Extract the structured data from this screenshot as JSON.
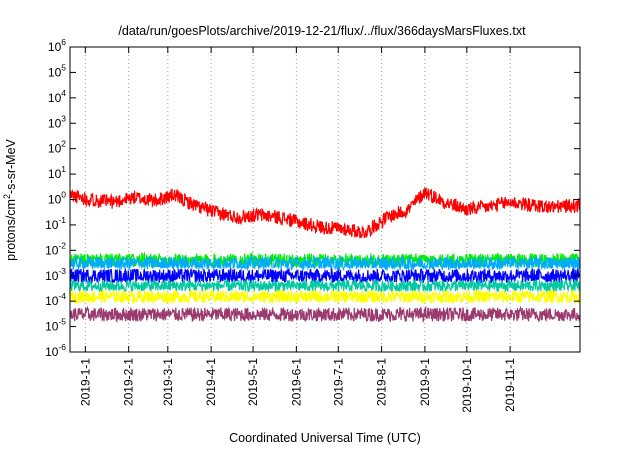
{
  "chart_data": {
    "type": "line",
    "title": "/data/run/goesPlots/archive/2019-12-21/flux/../flux/366daysMarsFluxes.txt",
    "xlabel": "Coordinated Universal Time (UTC)",
    "ylabel": "protons/cm²-s-sr-MeV",
    "ylabel_parts": {
      "prefix": "protons/cm",
      "sup": "2",
      "suffix": "-s-sr-MeV"
    },
    "y_scale": "log",
    "ylim_exp": [
      -6,
      6
    ],
    "y_ticks": [
      {
        "base": "10",
        "exp": "-6"
      },
      {
        "base": "10",
        "exp": "-5"
      },
      {
        "base": "10",
        "exp": "-4"
      },
      {
        "base": "10",
        "exp": "-3"
      },
      {
        "base": "10",
        "exp": "-2"
      },
      {
        "base": "10",
        "exp": "-1"
      },
      {
        "base": "10",
        "exp": "0"
      },
      {
        "base": "10",
        "exp": "1"
      },
      {
        "base": "10",
        "exp": "2"
      },
      {
        "base": "10",
        "exp": "3"
      },
      {
        "base": "10",
        "exp": "4"
      },
      {
        "base": "10",
        "exp": "5"
      },
      {
        "base": "10",
        "exp": "6"
      }
    ],
    "xlim": [
      "2018-12-21",
      "2019-12-21"
    ],
    "x_ticks": [
      "2019-1-1",
      "2019-2-1",
      "2019-3-1",
      "2019-4-1",
      "2019-5-1",
      "2019-6-1",
      "2019-7-1",
      "2019-8-1",
      "2019-9-1",
      "2019-10-1",
      "2019-11-1"
    ],
    "grid": true,
    "legend": "none",
    "series": [
      {
        "color": "#ff0000",
        "x": [
          "2018-12-21",
          "2019-01-05",
          "2019-01-20",
          "2019-02-05",
          "2019-02-20",
          "2019-03-05",
          "2019-03-20",
          "2019-04-05",
          "2019-04-20",
          "2019-05-05",
          "2019-05-20",
          "2019-06-05",
          "2019-06-20",
          "2019-07-05",
          "2019-07-20",
          "2019-08-05",
          "2019-08-20",
          "2019-09-01",
          "2019-09-15",
          "2019-10-01",
          "2019-10-15",
          "2019-11-01",
          "2019-11-15",
          "2019-12-01",
          "2019-12-21"
        ],
        "y": [
          1.5,
          1.0,
          0.8,
          1.2,
          0.9,
          1.5,
          0.6,
          0.3,
          0.2,
          0.25,
          0.2,
          0.12,
          0.08,
          0.07,
          0.05,
          0.2,
          0.4,
          2.0,
          0.8,
          0.4,
          0.5,
          0.8,
          0.6,
          0.5,
          0.6
        ]
      },
      {
        "color": "#00ee00",
        "x": [
          "2018-12-21",
          "2019-12-21"
        ],
        "y": [
          0.004,
          0.004
        ]
      },
      {
        "color": "#00aaff",
        "x": [
          "2018-12-21",
          "2019-12-21"
        ],
        "y": [
          0.003,
          0.003
        ]
      },
      {
        "color": "#ffffff",
        "x": [
          "2018-12-21",
          "2019-12-21"
        ],
        "y": [
          0.0015,
          0.0015
        ]
      },
      {
        "color": "#0000ff",
        "x": [
          "2018-12-21",
          "2019-12-21"
        ],
        "y": [
          0.001,
          0.001
        ]
      },
      {
        "color": "#00c8a0",
        "x": [
          "2018-12-21",
          "2019-12-21"
        ],
        "y": [
          0.0004,
          0.0004
        ]
      },
      {
        "color": "#ffff00",
        "x": [
          "2018-12-21",
          "2019-12-21"
        ],
        "y": [
          0.00015,
          0.00015
        ]
      },
      {
        "color": "#9a3a6e",
        "x": [
          "2018-12-21",
          "2019-12-21"
        ],
        "y": [
          3e-05,
          3e-05
        ]
      }
    ]
  }
}
